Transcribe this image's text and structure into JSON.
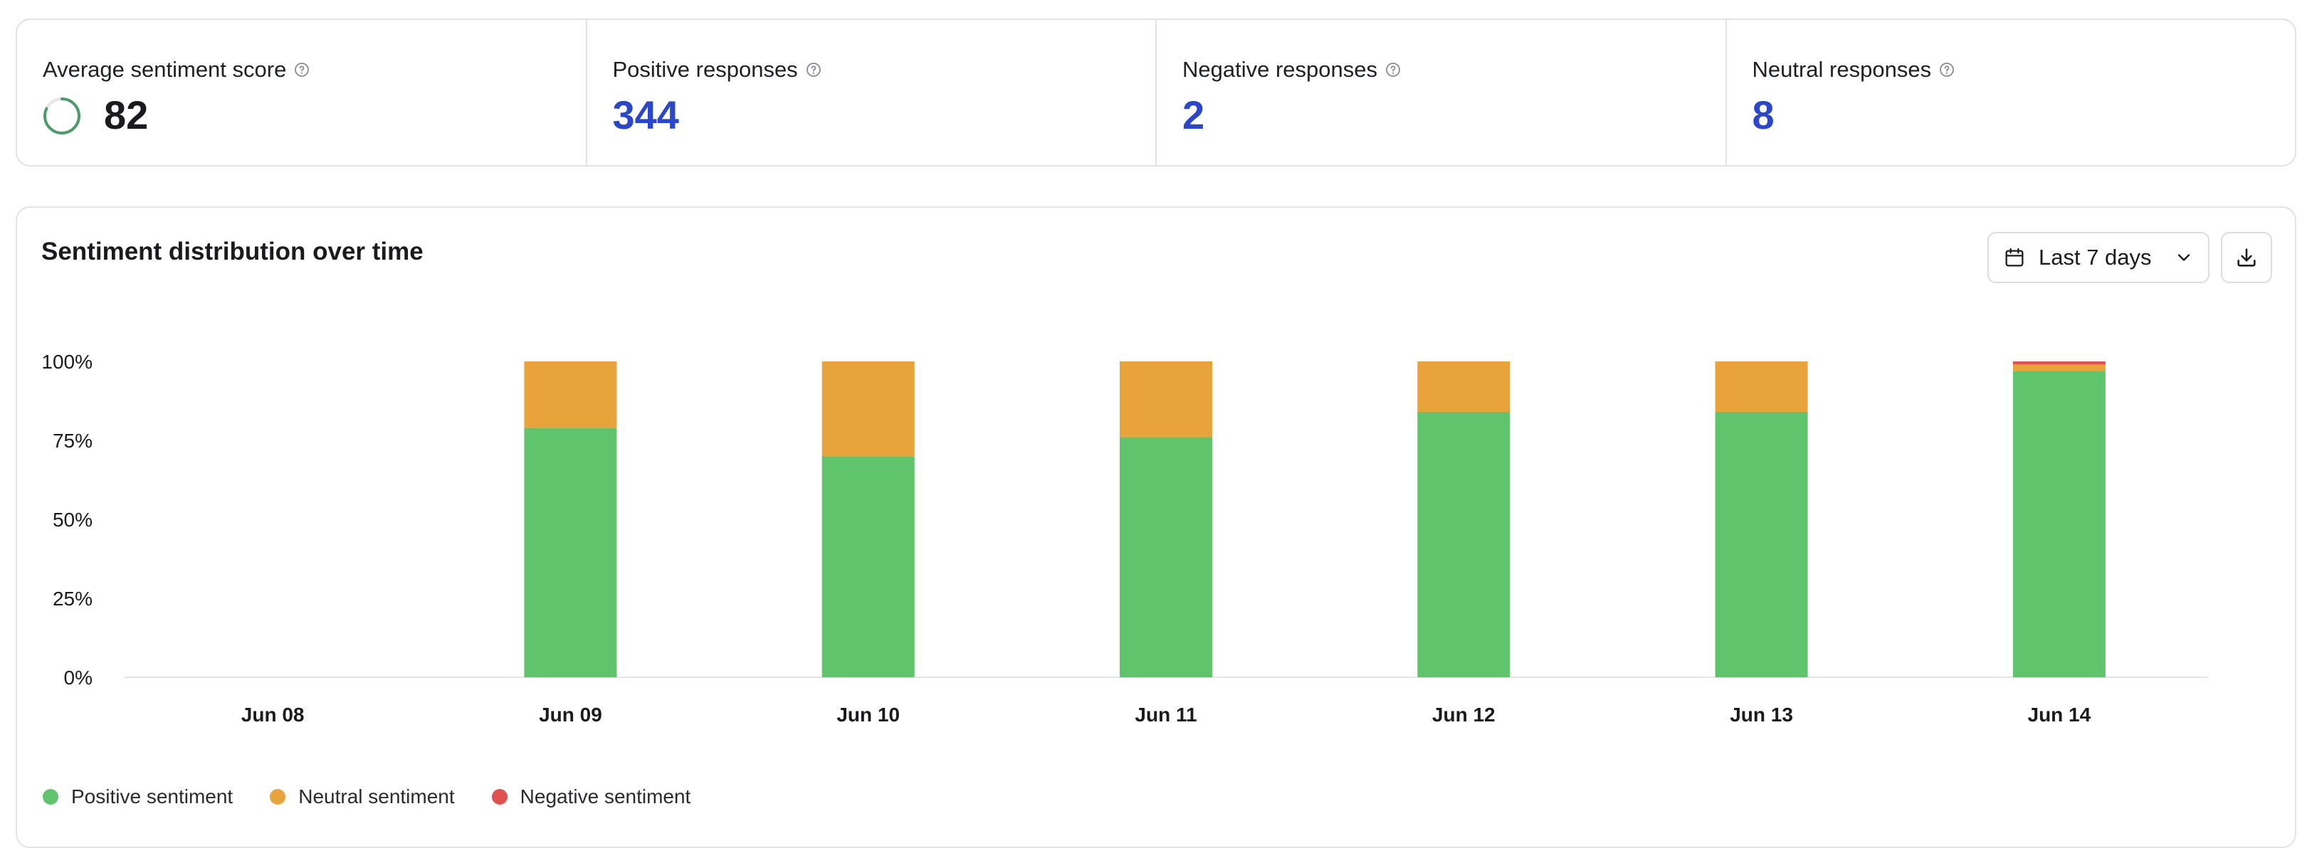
{
  "stats": [
    {
      "label": "Average sentiment score",
      "value": "82",
      "icon": "progress-ring-icon"
    },
    {
      "label": "Positive responses",
      "value": "344"
    },
    {
      "label": "Negative responses",
      "value": "2"
    },
    {
      "label": "Neutral responses",
      "value": "8"
    }
  ],
  "colors": {
    "positive": "#5fc46b",
    "neutral": "#e8a33a",
    "negative": "#e0524f",
    "value_blue": "#2a46c9",
    "ring": "#4f9a6a"
  },
  "chart_card": {
    "title": "Sentiment distribution over time",
    "range_label": "Last 7 days",
    "range_icon": "calendar-icon",
    "download_icon": "download-icon"
  },
  "chart_data": {
    "type": "bar",
    "stacked": true,
    "categories": [
      "Jun 08",
      "Jun 09",
      "Jun 10",
      "Jun 11",
      "Jun 12",
      "Jun 13",
      "Jun 14"
    ],
    "series": [
      {
        "name": "Positive sentiment",
        "values": [
          0,
          79,
          70,
          76,
          84,
          84,
          97
        ]
      },
      {
        "name": "Neutral sentiment",
        "values": [
          0,
          21,
          30,
          24,
          16,
          16,
          2
        ]
      },
      {
        "name": "Negative sentiment",
        "values": [
          0,
          0,
          0,
          0,
          0,
          0,
          1
        ]
      }
    ],
    "yticks": [
      "0%",
      "25%",
      "50%",
      "75%",
      "100%"
    ],
    "ylim": [
      0,
      100
    ],
    "legend": "bottom-left",
    "grid": false
  }
}
